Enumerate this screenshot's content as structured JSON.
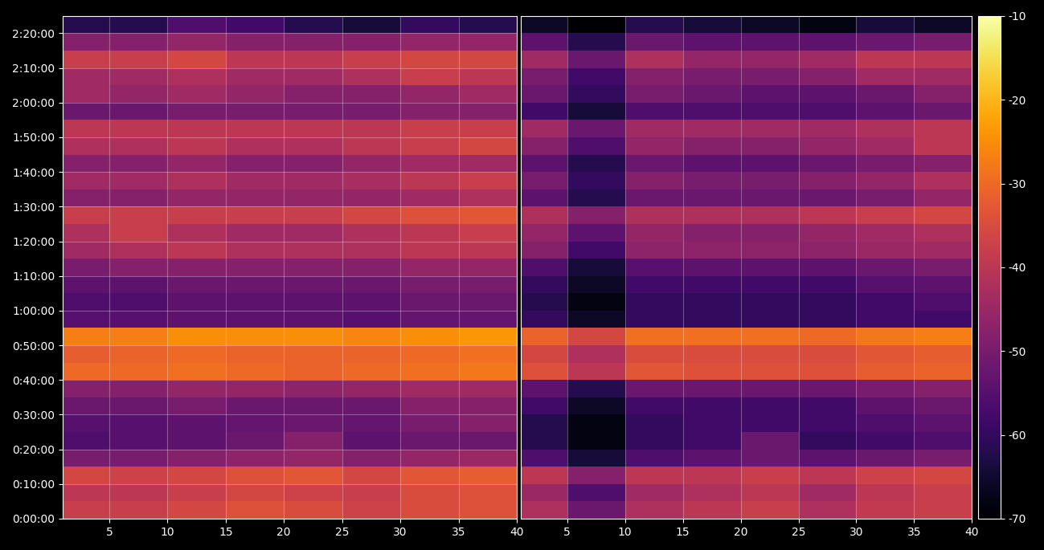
{
  "chart_data": [
    {
      "type": "heatmap",
      "grid": true,
      "xlim": [
        1,
        40
      ],
      "xticks": [
        5,
        10,
        15,
        20,
        25,
        30,
        35,
        40
      ],
      "ylim": [
        0,
        8700
      ],
      "yticks": [
        {
          "value": 0,
          "label": "0:00:00"
        },
        {
          "value": 600,
          "label": "0:10:00"
        },
        {
          "value": 1200,
          "label": "0:20:00"
        },
        {
          "value": 1800,
          "label": "0:30:00"
        },
        {
          "value": 2400,
          "label": "0:40:00"
        },
        {
          "value": 3000,
          "label": "0:50:00"
        },
        {
          "value": 3600,
          "label": "1:00:00"
        },
        {
          "value": 4200,
          "label": "1:10:00"
        },
        {
          "value": 4800,
          "label": "1:20:00"
        },
        {
          "value": 5400,
          "label": "1:30:00"
        },
        {
          "value": 6000,
          "label": "1:40:00"
        },
        {
          "value": 6600,
          "label": "1:50:00"
        },
        {
          "value": 7200,
          "label": "2:00:00"
        },
        {
          "value": 7800,
          "label": "2:10:00"
        },
        {
          "value": 8400,
          "label": "2:20:00"
        }
      ],
      "x_edges": [
        1,
        5,
        10,
        15,
        20,
        25,
        30,
        35,
        40
      ],
      "y_edges": [
        0,
        300,
        600,
        900,
        1200,
        1500,
        1800,
        2100,
        2400,
        2700,
        3000,
        3300,
        3600,
        3900,
        4200,
        4500,
        4800,
        5100,
        5400,
        5700,
        6000,
        6300,
        6600,
        6900,
        7200,
        7500,
        7800,
        8100,
        8400,
        8700
      ],
      "color_range": [
        -70,
        -10
      ],
      "cells": [
        [
          -38,
          -38,
          -36,
          -34,
          -35,
          -37,
          -35,
          -34
        ],
        [
          -40,
          -40,
          -38,
          -36,
          -37,
          -38,
          -35,
          -34
        ],
        [
          -36,
          -37,
          -36,
          -34,
          -33,
          -36,
          -33,
          -32
        ],
        [
          -50,
          -50,
          -48,
          -47,
          -46,
          -48,
          -46,
          -45
        ],
        [
          -56,
          -55,
          -54,
          -52,
          -48,
          -54,
          -52,
          -52
        ],
        [
          -55,
          -55,
          -54,
          -53,
          -52,
          -53,
          -50,
          -48
        ],
        [
          -52,
          -52,
          -50,
          -52,
          -52,
          -52,
          -48,
          -48
        ],
        [
          -48,
          -48,
          -46,
          -46,
          -47,
          -46,
          -44,
          -44
        ],
        [
          -30,
          -30,
          -29,
          -30,
          -31,
          -30,
          -29,
          -28
        ],
        [
          -32,
          -31,
          -30,
          -31,
          -31,
          -31,
          -30,
          -29
        ],
        [
          -27,
          -27,
          -25,
          -25,
          -25,
          -26,
          -25,
          -24
        ],
        [
          -55,
          -55,
          -54,
          -54,
          -54,
          -55,
          -53,
          -53
        ],
        [
          -56,
          -56,
          -54,
          -54,
          -54,
          -54,
          -52,
          -52
        ],
        [
          -54,
          -54,
          -52,
          -52,
          -52,
          -52,
          -50,
          -50
        ],
        [
          -50,
          -48,
          -48,
          -48,
          -48,
          -48,
          -46,
          -46
        ],
        [
          -44,
          -42,
          -40,
          -42,
          -42,
          -42,
          -40,
          -40
        ],
        [
          -42,
          -38,
          -42,
          -44,
          -44,
          -42,
          -40,
          -38
        ],
        [
          -38,
          -38,
          -38,
          -38,
          -38,
          -36,
          -34,
          -33
        ],
        [
          -48,
          -48,
          -46,
          -46,
          -46,
          -46,
          -44,
          -42
        ],
        [
          -44,
          -44,
          -42,
          -44,
          -44,
          -43,
          -40,
          -38
        ],
        [
          -48,
          -48,
          -46,
          -48,
          -48,
          -46,
          -44,
          -44
        ],
        [
          -42,
          -42,
          -40,
          -42,
          -42,
          -40,
          -38,
          -36
        ],
        [
          -40,
          -40,
          -40,
          -40,
          -40,
          -40,
          -38,
          -38
        ],
        [
          -52,
          -52,
          -50,
          -50,
          -50,
          -50,
          -48,
          -48
        ],
        [
          -44,
          -46,
          -44,
          -46,
          -48,
          -48,
          -46,
          -44
        ],
        [
          -44,
          -44,
          -42,
          -44,
          -44,
          -42,
          -38,
          -40
        ],
        [
          -38,
          -38,
          -36,
          -40,
          -40,
          -38,
          -36,
          -36
        ],
        [
          -48,
          -48,
          -46,
          -48,
          -48,
          -48,
          -46,
          -46
        ],
        [
          -62,
          -62,
          -56,
          -58,
          -62,
          -64,
          -60,
          -62
        ]
      ]
    },
    {
      "type": "heatmap",
      "grid": true,
      "tick_labels": "x",
      "xlim": [
        1,
        40
      ],
      "xticks": [
        5,
        10,
        15,
        20,
        25,
        30,
        35,
        40
      ],
      "ylim": [
        0,
        8700
      ],
      "x_edges": [
        1,
        5,
        10,
        15,
        20,
        25,
        30,
        35,
        40
      ],
      "y_edges": [
        0,
        300,
        600,
        900,
        1200,
        1500,
        1800,
        2100,
        2400,
        2700,
        3000,
        3300,
        3600,
        3900,
        4200,
        4500,
        4800,
        5100,
        5400,
        5700,
        6000,
        6300,
        6600,
        6900,
        7200,
        7500,
        7800,
        8100,
        8400,
        8700
      ],
      "color_range": [
        -70,
        -10
      ],
      "color_ticks": [
        -70,
        -60,
        -50,
        -40,
        -30,
        -20,
        -10
      ],
      "cells": [
        [
          -42,
          -52,
          -42,
          -40,
          -38,
          -42,
          -39,
          -38
        ],
        [
          -45,
          -56,
          -44,
          -42,
          -40,
          -44,
          -40,
          -38
        ],
        [
          -40,
          -48,
          -40,
          -40,
          -38,
          -40,
          -37,
          -36
        ],
        [
          -56,
          -64,
          -56,
          -54,
          -52,
          -54,
          -52,
          -50
        ],
        [
          -62,
          -68,
          -60,
          -58,
          -52,
          -60,
          -58,
          -56
        ],
        [
          -62,
          -68,
          -60,
          -58,
          -58,
          -58,
          -56,
          -54
        ],
        [
          -58,
          -66,
          -58,
          -58,
          -58,
          -58,
          -54,
          -52
        ],
        [
          -54,
          -62,
          -52,
          -52,
          -52,
          -52,
          -50,
          -48
        ],
        [
          -34,
          -40,
          -33,
          -34,
          -34,
          -34,
          -32,
          -31
        ],
        [
          -36,
          -42,
          -35,
          -35,
          -35,
          -35,
          -33,
          -32
        ],
        [
          -31,
          -36,
          -29,
          -29,
          -29,
          -30,
          -28,
          -27
        ],
        [
          -60,
          -66,
          -60,
          -60,
          -60,
          -60,
          -58,
          -58
        ],
        [
          -62,
          -68,
          -60,
          -60,
          -60,
          -60,
          -58,
          -56
        ],
        [
          -60,
          -66,
          -58,
          -58,
          -58,
          -58,
          -55,
          -54
        ],
        [
          -56,
          -64,
          -55,
          -54,
          -54,
          -54,
          -52,
          -50
        ],
        [
          -48,
          -58,
          -47,
          -47,
          -47,
          -47,
          -45,
          -44
        ],
        [
          -46,
          -54,
          -46,
          -48,
          -48,
          -46,
          -44,
          -42
        ],
        [
          -42,
          -48,
          -42,
          -42,
          -42,
          -40,
          -38,
          -36
        ],
        [
          -54,
          -62,
          -52,
          -52,
          -52,
          -52,
          -50,
          -46
        ],
        [
          -50,
          -60,
          -48,
          -50,
          -50,
          -48,
          -46,
          -42
        ],
        [
          -54,
          -62,
          -52,
          -54,
          -54,
          -52,
          -50,
          -48
        ],
        [
          -48,
          -56,
          -46,
          -48,
          -48,
          -46,
          -44,
          -40
        ],
        [
          -44,
          -52,
          -44,
          -44,
          -44,
          -44,
          -42,
          -40
        ],
        [
          -58,
          -64,
          -56,
          -56,
          -56,
          -56,
          -54,
          -52
        ],
        [
          -52,
          -60,
          -50,
          -52,
          -54,
          -54,
          -52,
          -48
        ],
        [
          -50,
          -58,
          -48,
          -50,
          -50,
          -48,
          -44,
          -44
        ],
        [
          -44,
          -52,
          -42,
          -46,
          -46,
          -44,
          -40,
          -40
        ],
        [
          -54,
          -62,
          -52,
          -54,
          -54,
          -54,
          -52,
          -50
        ],
        [
          -66,
          -70,
          -62,
          -64,
          -66,
          -68,
          -64,
          -66
        ]
      ]
    }
  ]
}
